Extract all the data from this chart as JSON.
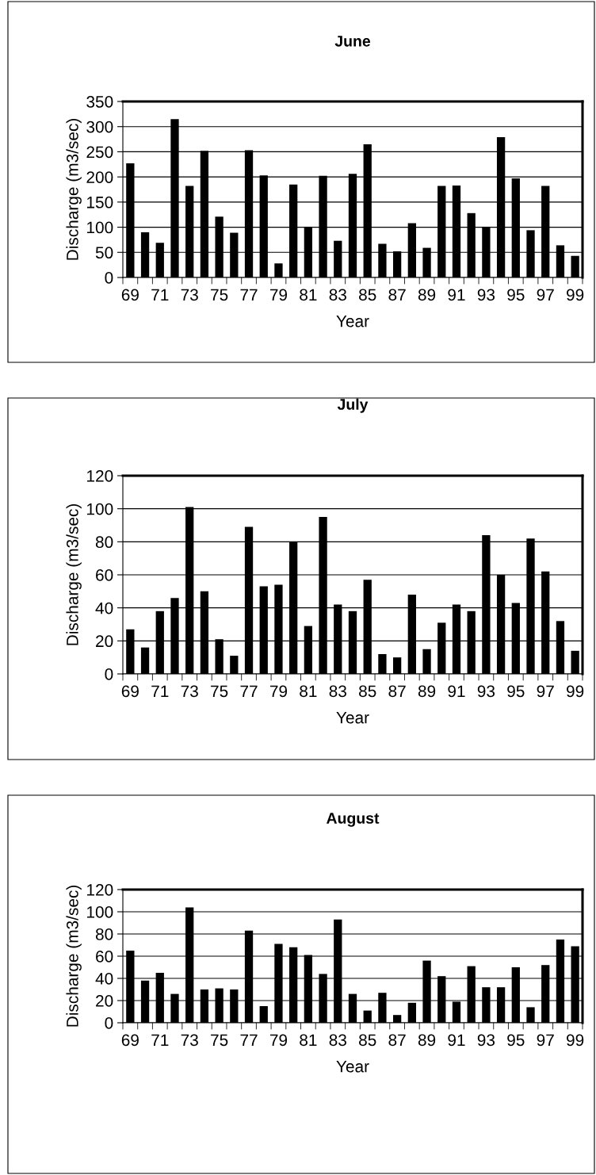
{
  "chart_data": [
    {
      "type": "bar",
      "title": "June",
      "xlabel": "Year",
      "ylabel": "Discharge (m3/sec)",
      "categories": [
        "69",
        null,
        "71",
        null,
        "73",
        null,
        "75",
        null,
        "77",
        null,
        "79",
        null,
        "81",
        null,
        "83",
        null,
        "85",
        null,
        "87",
        null,
        "89",
        null,
        "91",
        null,
        "93",
        null,
        "95",
        null,
        "97",
        null,
        "99"
      ],
      "color": "#000000",
      "values": [
        227,
        90,
        69,
        315,
        182,
        252,
        121,
        89,
        253,
        203,
        28,
        185,
        101,
        202,
        73,
        206,
        265,
        67,
        52,
        108,
        59,
        182,
        183,
        128,
        101,
        279,
        197,
        94,
        182,
        64,
        43
      ],
      "ylim": [
        0,
        350
      ],
      "yticks": [
        0,
        50,
        100,
        150,
        200,
        250,
        300,
        350
      ],
      "grid": "y"
    },
    {
      "type": "bar",
      "title": "July",
      "xlabel": "Year",
      "ylabel": "Discharge (m3/sec)",
      "categories": [
        "69",
        null,
        "71",
        null,
        "73",
        null,
        "75",
        null,
        "77",
        null,
        "79",
        null,
        "81",
        null,
        "83",
        null,
        "85",
        null,
        "87",
        null,
        "89",
        null,
        "91",
        null,
        "93",
        null,
        "95",
        null,
        "97",
        null,
        "99"
      ],
      "color": "#000000",
      "values": [
        27,
        16,
        38,
        46,
        101,
        50,
        21,
        11,
        89,
        53,
        54,
        80,
        29,
        95,
        42,
        38,
        57,
        12,
        10,
        48,
        15,
        31,
        42,
        38,
        84,
        60,
        43,
        82,
        62,
        32,
        14
      ],
      "ylim": [
        0,
        120
      ],
      "yticks": [
        0,
        20,
        40,
        60,
        80,
        100,
        120
      ],
      "grid": "y"
    },
    {
      "type": "bar",
      "title": "August",
      "xlabel": "Year",
      "ylabel": "Discharge (m3/sec)",
      "categories": [
        "69",
        null,
        "71",
        null,
        "73",
        null,
        "75",
        null,
        "77",
        null,
        "79",
        null,
        "81",
        null,
        "83",
        null,
        "85",
        null,
        "87",
        null,
        "89",
        null,
        "91",
        null,
        "93",
        null,
        "95",
        null,
        "97",
        null,
        "99"
      ],
      "color": "#000000",
      "values": [
        65,
        38,
        45,
        26,
        104,
        30,
        31,
        30,
        83,
        15,
        71,
        68,
        61,
        44,
        93,
        26,
        11,
        27,
        7,
        18,
        56,
        42,
        19,
        51,
        32,
        32,
        50,
        14,
        52,
        75,
        69
      ],
      "ylim": [
        0,
        120
      ],
      "yticks": [
        0,
        20,
        40,
        60,
        80,
        100,
        120
      ],
      "grid": "y"
    }
  ]
}
